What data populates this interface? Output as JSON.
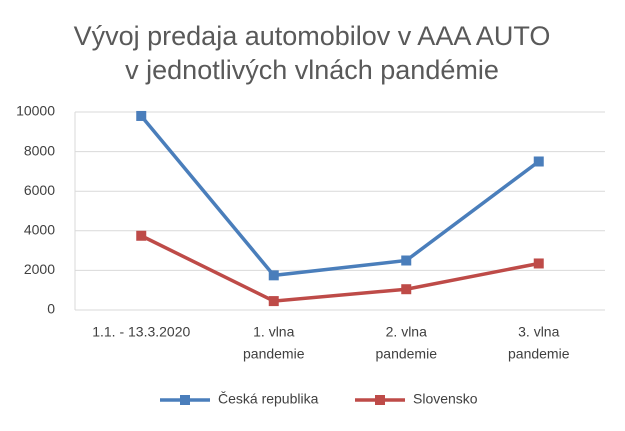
{
  "chart_data": {
    "type": "line",
    "title": [
      "Vývoj predaja automobilov v AAA AUTO",
      "v jednotlivých vlnách pandémie"
    ],
    "categories": [
      [
        "1.1. - 13.3.2020"
      ],
      [
        "1. vlna",
        "pandemie"
      ],
      [
        "2. vlna",
        "pandemie"
      ],
      [
        "3. vlna",
        "pandemie"
      ]
    ],
    "series": [
      {
        "name": "Česká republika",
        "color": "#4a7ebb",
        "values": [
          9800,
          1750,
          2500,
          7500
        ]
      },
      {
        "name": "Slovensko",
        "color": "#be4b48",
        "values": [
          3750,
          450,
          1050,
          2350
        ]
      }
    ],
    "ylim": [
      0,
      10000
    ],
    "yticks": [
      0,
      2000,
      4000,
      6000,
      8000,
      10000
    ],
    "grid": true,
    "legend": "bottom"
  }
}
